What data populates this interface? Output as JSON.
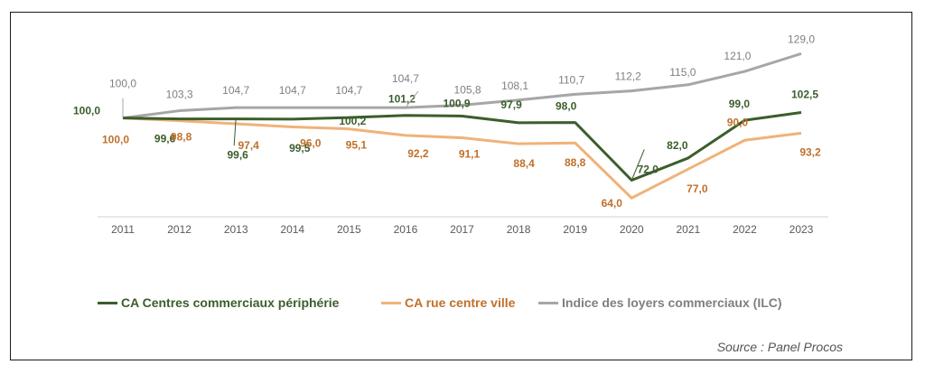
{
  "chart_data": {
    "type": "line",
    "x": [
      "2011",
      "2012",
      "2013",
      "2014",
      "2015",
      "2016",
      "2017",
      "2018",
      "2019",
      "2020",
      "2021",
      "2022",
      "2023"
    ],
    "series": [
      {
        "name": "CA Centres commerciaux périphérie",
        "color": "#3b5e2b",
        "values": [
          100.0,
          99.6,
          99.6,
          99.5,
          100.2,
          101.2,
          100.9,
          97.9,
          98.0,
          72.0,
          82.0,
          99.0,
          102.5
        ],
        "labels": [
          "100,0",
          "99,6",
          "99,6",
          "99,5",
          "100,2",
          "101,2",
          "100,9",
          "97,9",
          "98,0",
          "72,0",
          "82,0",
          "99,0",
          "102,5"
        ]
      },
      {
        "name": "CA rue centre ville",
        "color": "#f0b27a",
        "label_color": "#c0702a",
        "values": [
          100.0,
          98.8,
          97.4,
          96.0,
          95.1,
          92.2,
          91.1,
          88.4,
          88.8,
          64.0,
          77.0,
          90.0,
          93.2
        ],
        "labels": [
          "100,0",
          "98,8",
          "97,4",
          "96,0",
          "95,1",
          "92,2",
          "91,1",
          "88,4",
          "88,8",
          "64,0",
          "77,0",
          "90,0",
          "93,2"
        ]
      },
      {
        "name": "Indice des loyers commerciaux (ILC)",
        "color": "#a6a6a6",
        "label_color": "#7f7f7f",
        "values": [
          100.0,
          103.3,
          104.7,
          104.7,
          104.7,
          104.7,
          105.8,
          108.1,
          110.7,
          112.2,
          115.0,
          121.0,
          129.0
        ],
        "labels": [
          "100,0",
          "103,3",
          "104,7",
          "104,7",
          "104,7",
          "104,7",
          "105,8",
          "108,1",
          "110,7",
          "112,2",
          "115,0",
          "121,0",
          "129,0"
        ]
      }
    ],
    "ylim": [
      60,
      132
    ],
    "grid": false,
    "legend": "bottom",
    "source": "Source : Panel Procos"
  }
}
